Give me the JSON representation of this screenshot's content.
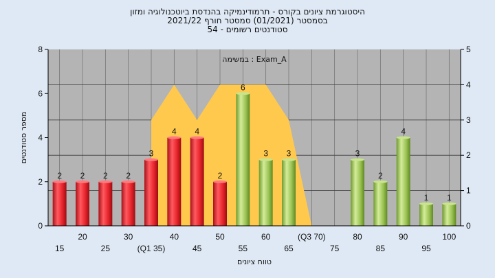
{
  "chart_data": {
    "type": "bar",
    "title_lines": [
      "היסטוגרמת ציונים בקורס - תרמודינמיקה בהנדסת ביוטכנולוגיה ומזון",
      "בסמסטר  (01/2021)  סמסטר חורף  2021/22",
      "סטודנטים רשומים - 54"
    ],
    "annotation": "במשימה : Exam_A",
    "xlabel": "טווח ציונים",
    "ylabel": "מספר סטודנטים",
    "ylim": [
      0,
      8
    ],
    "yticks": [
      0,
      2,
      4,
      6,
      8
    ],
    "y2lim": [
      0,
      5
    ],
    "y2ticks": [
      0,
      1,
      2,
      3,
      4,
      5
    ],
    "categories": [
      "15",
      "20",
      "25",
      "30",
      "35",
      "40",
      "45",
      "50",
      "55",
      "60",
      "65",
      "70",
      "75",
      "80",
      "85",
      "90",
      "95",
      "100"
    ],
    "tick_labels": [
      "15",
      "20",
      "25",
      "30",
      "(Q1 35)",
      "40",
      "45",
      "50",
      "55",
      "60",
      "65",
      "(Q3 70)",
      "75",
      "80",
      "85",
      "90",
      "95",
      "100"
    ],
    "values": [
      2,
      2,
      2,
      2,
      3,
      4,
      4,
      2,
      6,
      3,
      3,
      0,
      0,
      3,
      2,
      4,
      1,
      1
    ],
    "bar_colors": [
      "red",
      "red",
      "red",
      "red",
      "red",
      "red",
      "red",
      "red",
      "green",
      "green",
      "green",
      "green",
      "green",
      "green",
      "green",
      "green",
      "green",
      "green"
    ],
    "area_series": {
      "x": [
        "35",
        "40",
        "45",
        "50",
        "55",
        "60",
        "65",
        "70",
        "75"
      ],
      "values": [
        3,
        4,
        3,
        4,
        4,
        4,
        3,
        0,
        0
      ]
    },
    "colors": {
      "background": "#dfe9f5",
      "plot": "#b4b4b4",
      "area": "#ffc94d",
      "red": "#e8242c",
      "green": "#9cc455"
    },
    "grid": true
  }
}
